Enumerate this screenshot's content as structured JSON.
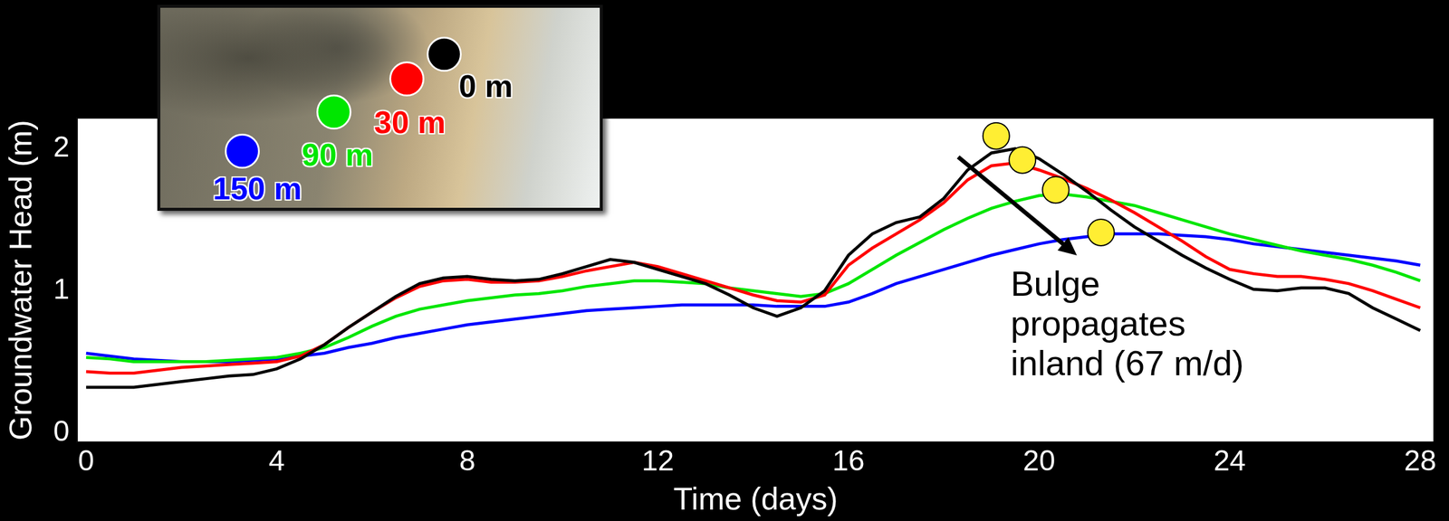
{
  "chart_data": {
    "type": "line",
    "x_label": "Time (days)",
    "y_label": "Groundwater Head (m)",
    "x": [
      0,
      0.5,
      1,
      1.5,
      2,
      2.5,
      3,
      3.5,
      4,
      4.5,
      5,
      5.5,
      6,
      6.5,
      7,
      7.5,
      8,
      8.5,
      9,
      9.5,
      10,
      10.5,
      11,
      11.5,
      12,
      12.5,
      13,
      13.5,
      14,
      14.5,
      15,
      15.5,
      16,
      16.5,
      17,
      17.5,
      18,
      18.5,
      19,
      19.5,
      20,
      20.5,
      21,
      21.5,
      22,
      22.5,
      23,
      23.5,
      24,
      24.5,
      25,
      25.5,
      26,
      26.5,
      27,
      27.5,
      28
    ],
    "series": [
      {
        "name": "0 m",
        "color": "#000000",
        "values": [
          0.32,
          0.32,
          0.32,
          0.34,
          0.36,
          0.38,
          0.4,
          0.41,
          0.45,
          0.52,
          0.62,
          0.74,
          0.85,
          0.96,
          1.05,
          1.09,
          1.1,
          1.08,
          1.07,
          1.08,
          1.12,
          1.17,
          1.22,
          1.2,
          1.15,
          1.1,
          1.05,
          0.97,
          0.88,
          0.82,
          0.88,
          1.0,
          1.25,
          1.4,
          1.48,
          1.52,
          1.65,
          1.85,
          1.97,
          2.0,
          1.93,
          1.82,
          1.7,
          1.57,
          1.45,
          1.35,
          1.25,
          1.16,
          1.08,
          1.01,
          1.0,
          1.02,
          1.02,
          0.98,
          0.88,
          0.8,
          0.72
        ]
      },
      {
        "name": "30 m",
        "color": "#ff0000",
        "values": [
          0.43,
          0.42,
          0.42,
          0.44,
          0.46,
          0.47,
          0.48,
          0.49,
          0.5,
          0.54,
          0.62,
          0.74,
          0.85,
          0.95,
          1.03,
          1.07,
          1.08,
          1.06,
          1.06,
          1.07,
          1.1,
          1.14,
          1.17,
          1.2,
          1.17,
          1.12,
          1.07,
          1.02,
          0.97,
          0.93,
          0.92,
          0.97,
          1.18,
          1.3,
          1.4,
          1.5,
          1.62,
          1.78,
          1.88,
          1.9,
          1.85,
          1.79,
          1.72,
          1.64,
          1.55,
          1.45,
          1.35,
          1.24,
          1.15,
          1.12,
          1.1,
          1.1,
          1.08,
          1.05,
          1.0,
          0.94,
          0.88
        ]
      },
      {
        "name": "90 m",
        "color": "#00e600",
        "values": [
          0.53,
          0.52,
          0.5,
          0.5,
          0.5,
          0.5,
          0.51,
          0.52,
          0.53,
          0.56,
          0.6,
          0.67,
          0.75,
          0.82,
          0.87,
          0.9,
          0.93,
          0.95,
          0.97,
          0.98,
          1.0,
          1.03,
          1.05,
          1.07,
          1.07,
          1.06,
          1.05,
          1.02,
          1.0,
          0.98,
          0.96,
          0.98,
          1.05,
          1.15,
          1.25,
          1.34,
          1.43,
          1.51,
          1.58,
          1.63,
          1.67,
          1.68,
          1.66,
          1.63,
          1.6,
          1.55,
          1.5,
          1.45,
          1.4,
          1.36,
          1.32,
          1.28,
          1.25,
          1.22,
          1.18,
          1.13,
          1.07
        ]
      },
      {
        "name": "150 m",
        "color": "#0000ff",
        "values": [
          0.56,
          0.54,
          0.52,
          0.51,
          0.5,
          0.5,
          0.5,
          0.51,
          0.52,
          0.54,
          0.56,
          0.6,
          0.63,
          0.67,
          0.7,
          0.73,
          0.76,
          0.78,
          0.8,
          0.82,
          0.84,
          0.86,
          0.87,
          0.88,
          0.89,
          0.9,
          0.9,
          0.9,
          0.9,
          0.89,
          0.89,
          0.89,
          0.92,
          0.98,
          1.05,
          1.1,
          1.15,
          1.2,
          1.25,
          1.29,
          1.33,
          1.36,
          1.38,
          1.4,
          1.4,
          1.4,
          1.39,
          1.38,
          1.36,
          1.33,
          1.31,
          1.29,
          1.27,
          1.25,
          1.23,
          1.21,
          1.18
        ]
      }
    ],
    "xlim": [
      -0.2,
      28.3
    ],
    "xticks": [
      0,
      4,
      8,
      12,
      16,
      20,
      24,
      28
    ],
    "ylim": [
      -0.07,
      2.22
    ],
    "yticks": [
      0,
      1,
      2
    ],
    "grid": false,
    "legend": "upper left",
    "annotations": [
      {
        "text": "Bulge propagates inland (67 m/d)",
        "x": [
          19.1,
          19.65,
          20.35,
          21.3
        ],
        "y": [
          2.09,
          1.92,
          1.71,
          1.41
        ],
        "color": "#ffee33"
      }
    ]
  }
}
